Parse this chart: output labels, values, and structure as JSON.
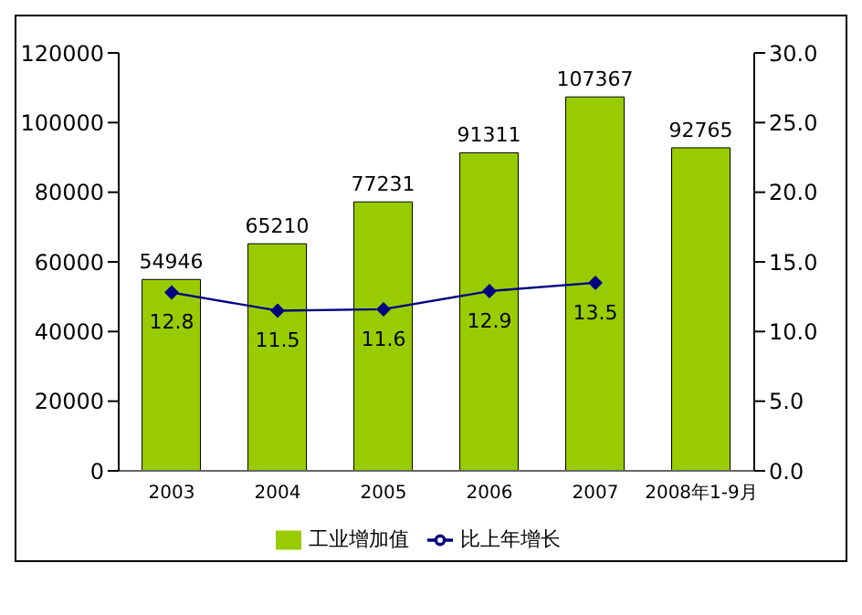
{
  "chart_data": {
    "type": "bar",
    "categories": [
      "2003",
      "2004",
      "2005",
      "2006",
      "2007",
      "2008年1-9月"
    ],
    "series": [
      {
        "name": "工业增加值",
        "color": "#99cc00",
        "values": [
          54946,
          65210,
          77231,
          91311,
          107367,
          92765
        ]
      },
      {
        "name": "比上年增长",
        "type": "line",
        "axis": "y2",
        "color": "#000080",
        "values": [
          12.8,
          11.5,
          11.6,
          12.9,
          13.5,
          null
        ]
      }
    ],
    "ylim": [
      0,
      120000
    ],
    "yticks": [
      0,
      20000,
      40000,
      60000,
      80000,
      100000,
      120000
    ],
    "y2lim": [
      0,
      30
    ],
    "y2ticks": [
      {
        "value": 0,
        "label": "0.0"
      },
      {
        "value": 5,
        "label": "5.0"
      },
      {
        "value": 10,
        "label": "10.0"
      },
      {
        "value": 15,
        "label": "15.0"
      },
      {
        "value": 20,
        "label": "20.0"
      },
      {
        "value": 25,
        "label": "25.0"
      },
      {
        "value": 30,
        "label": "30.0"
      }
    ],
    "data_labels": true,
    "legend": "bottom",
    "marker": "diamond",
    "line_style": "solid",
    "grid": false
  }
}
